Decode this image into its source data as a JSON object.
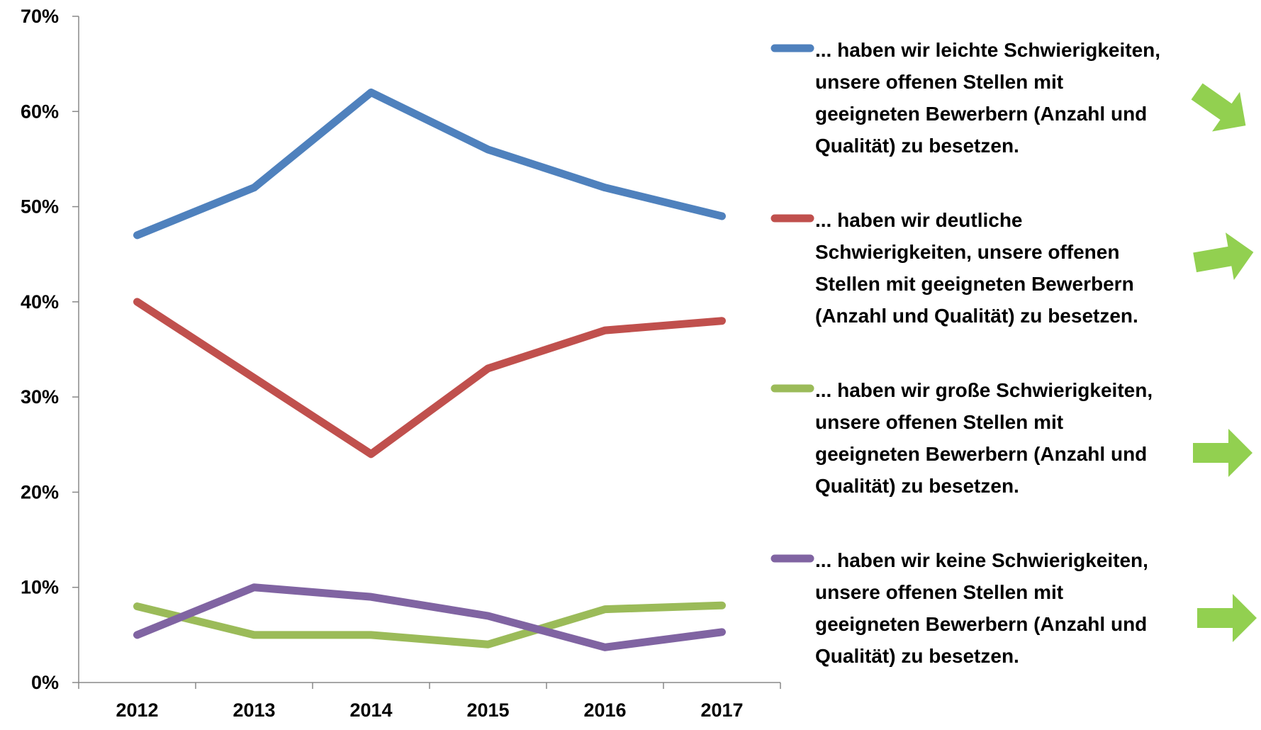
{
  "chart_data": {
    "type": "line",
    "categories": [
      "2012",
      "2013",
      "2014",
      "2015",
      "2016",
      "2017"
    ],
    "series": [
      {
        "name": "... haben wir leichte Schwierigkeiten, unsere offenen Stellen mit geeigneten Bewerbern (Anzahl und Qualität) zu besetzen.",
        "color": "#4f81bd",
        "values": [
          47,
          52,
          62,
          56,
          52,
          49
        ]
      },
      {
        "name": "... haben wir deutliche Schwierigkeiten, unsere offenen Stellen mit geeigneten Bewerbern (Anzahl und Qualität) zu besetzen.",
        "color": "#c0504d",
        "values": [
          40,
          32,
          24,
          33,
          37,
          38
        ]
      },
      {
        "name": "... haben wir große Schwierigkeiten, unsere offenen Stellen mit geeigneten Bewerbern (Anzahl und Qualität) zu besetzen.",
        "color": "#9bbb59",
        "values": [
          8,
          5,
          5,
          4,
          7.7,
          8.1
        ]
      },
      {
        "name": "... haben wir keine Schwierigkeiten, unsere offenen Stellen mit geeigneten Bewerbern (Anzahl und Qualität) zu besetzen.",
        "color": "#8064a2",
        "values": [
          5,
          10,
          9,
          7,
          3.7,
          5.3
        ]
      }
    ],
    "ylim": [
      0,
      70
    ],
    "yticks": [
      {
        "value": 0,
        "label": "0%"
      },
      {
        "value": 10,
        "label": "10%"
      },
      {
        "value": 20,
        "label": "20%"
      },
      {
        "value": 30,
        "label": "30%"
      },
      {
        "value": 40,
        "label": "40%"
      },
      {
        "value": 50,
        "label": "50%"
      },
      {
        "value": 60,
        "label": "60%"
      },
      {
        "value": 70,
        "label": "70%"
      }
    ],
    "legend": "right"
  }
}
